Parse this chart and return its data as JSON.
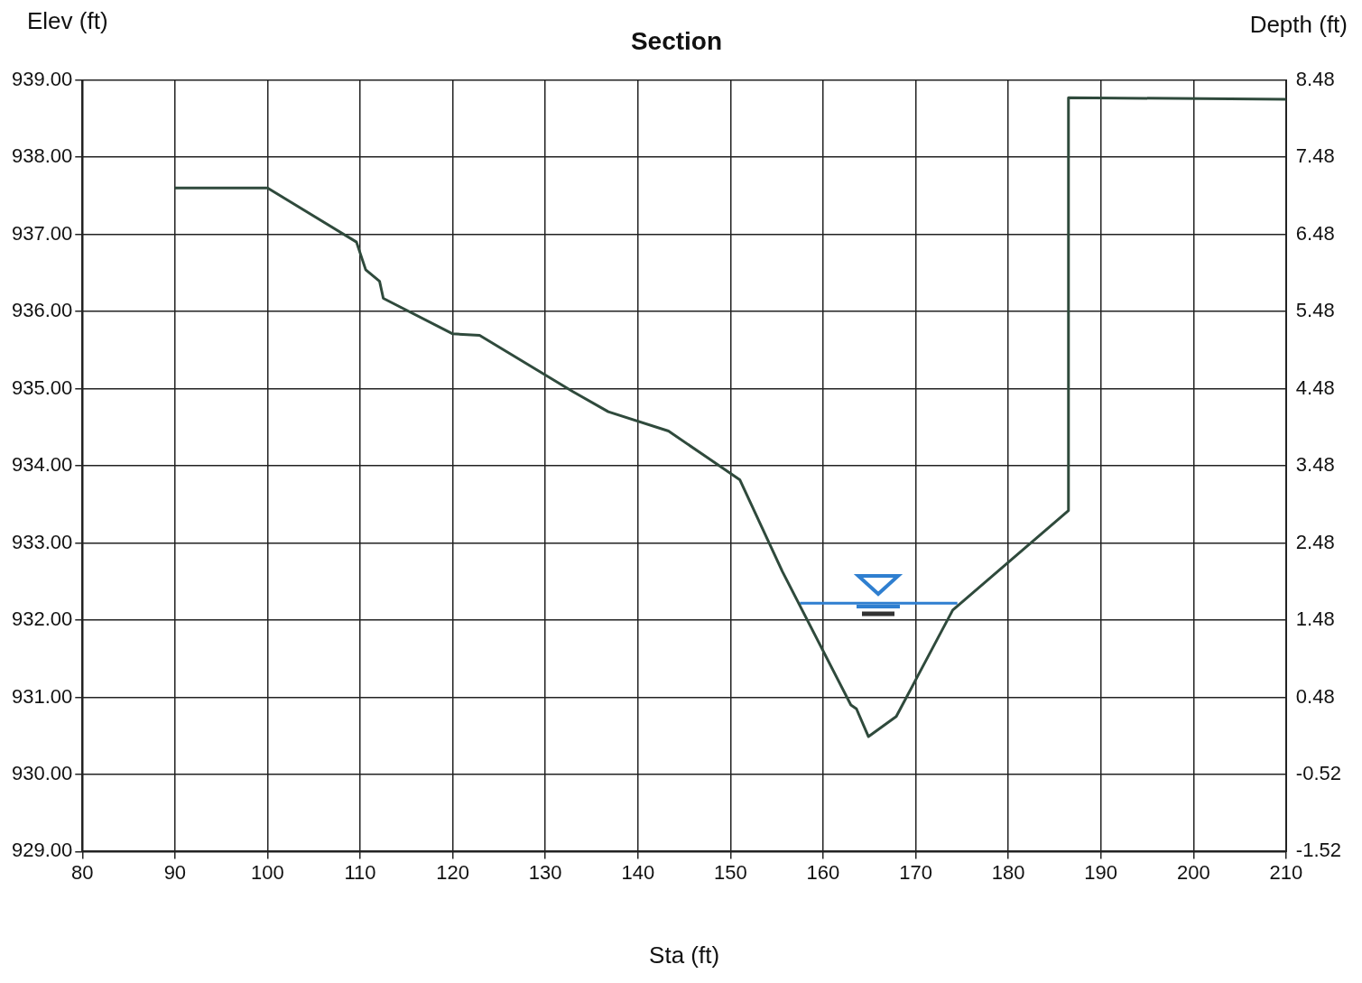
{
  "chart_data": {
    "type": "line",
    "title": "Section",
    "xlabel": "Sta (ft)",
    "ylabel": "Elev (ft)",
    "y2label": "Depth (ft)",
    "series": [
      {
        "type": "line",
        "color": "#2f4a3c",
        "x": [
          90,
          100,
          109.6,
          110.6,
          112.1,
          112.5,
          120,
          122.9,
          133,
          136.8,
          143.3,
          151,
          155.6,
          163,
          163.6,
          164.9,
          167.9,
          174,
          186.5,
          186.5,
          210
        ],
        "values": [
          937.6,
          937.6,
          936.9,
          936.54,
          936.39,
          936.17,
          935.71,
          935.69,
          934.96,
          934.7,
          934.45,
          933.82,
          932.63,
          930.9,
          930.85,
          930.49,
          930.75,
          932.13,
          933.42,
          938.77,
          938.75
        ]
      },
      {
        "type": "line",
        "color": "#2f7fd0",
        "x": [
          157.5,
          174.5
        ],
        "values": [
          932.22,
          932.22
        ]
      }
    ],
    "xlim": [
      80,
      210
    ],
    "xticks": [
      80,
      90,
      100,
      110,
      120,
      130,
      140,
      150,
      160,
      170,
      180,
      190,
      200,
      210
    ],
    "ylim": [
      929,
      939
    ],
    "yticks": [
      {
        "value": 929,
        "label": "929.00"
      },
      {
        "value": 930,
        "label": "930.00"
      },
      {
        "value": 931,
        "label": "931.00"
      },
      {
        "value": 932,
        "label": "932.00"
      },
      {
        "value": 933,
        "label": "933.00"
      },
      {
        "value": 934,
        "label": "934.00"
      },
      {
        "value": 935,
        "label": "935.00"
      },
      {
        "value": 936,
        "label": "936.00"
      },
      {
        "value": 937,
        "label": "937.00"
      },
      {
        "value": 938,
        "label": "938.00"
      },
      {
        "value": 939,
        "label": "939.00"
      }
    ],
    "y2lim": [
      -1.52,
      8.48
    ],
    "y2ticks": [
      -1.52,
      -0.52,
      0.48,
      1.48,
      2.48,
      3.48,
      4.48,
      5.48,
      6.48,
      7.48,
      8.48
    ],
    "grid": true,
    "legend": false,
    "marker": "none",
    "line_style": "solid"
  }
}
